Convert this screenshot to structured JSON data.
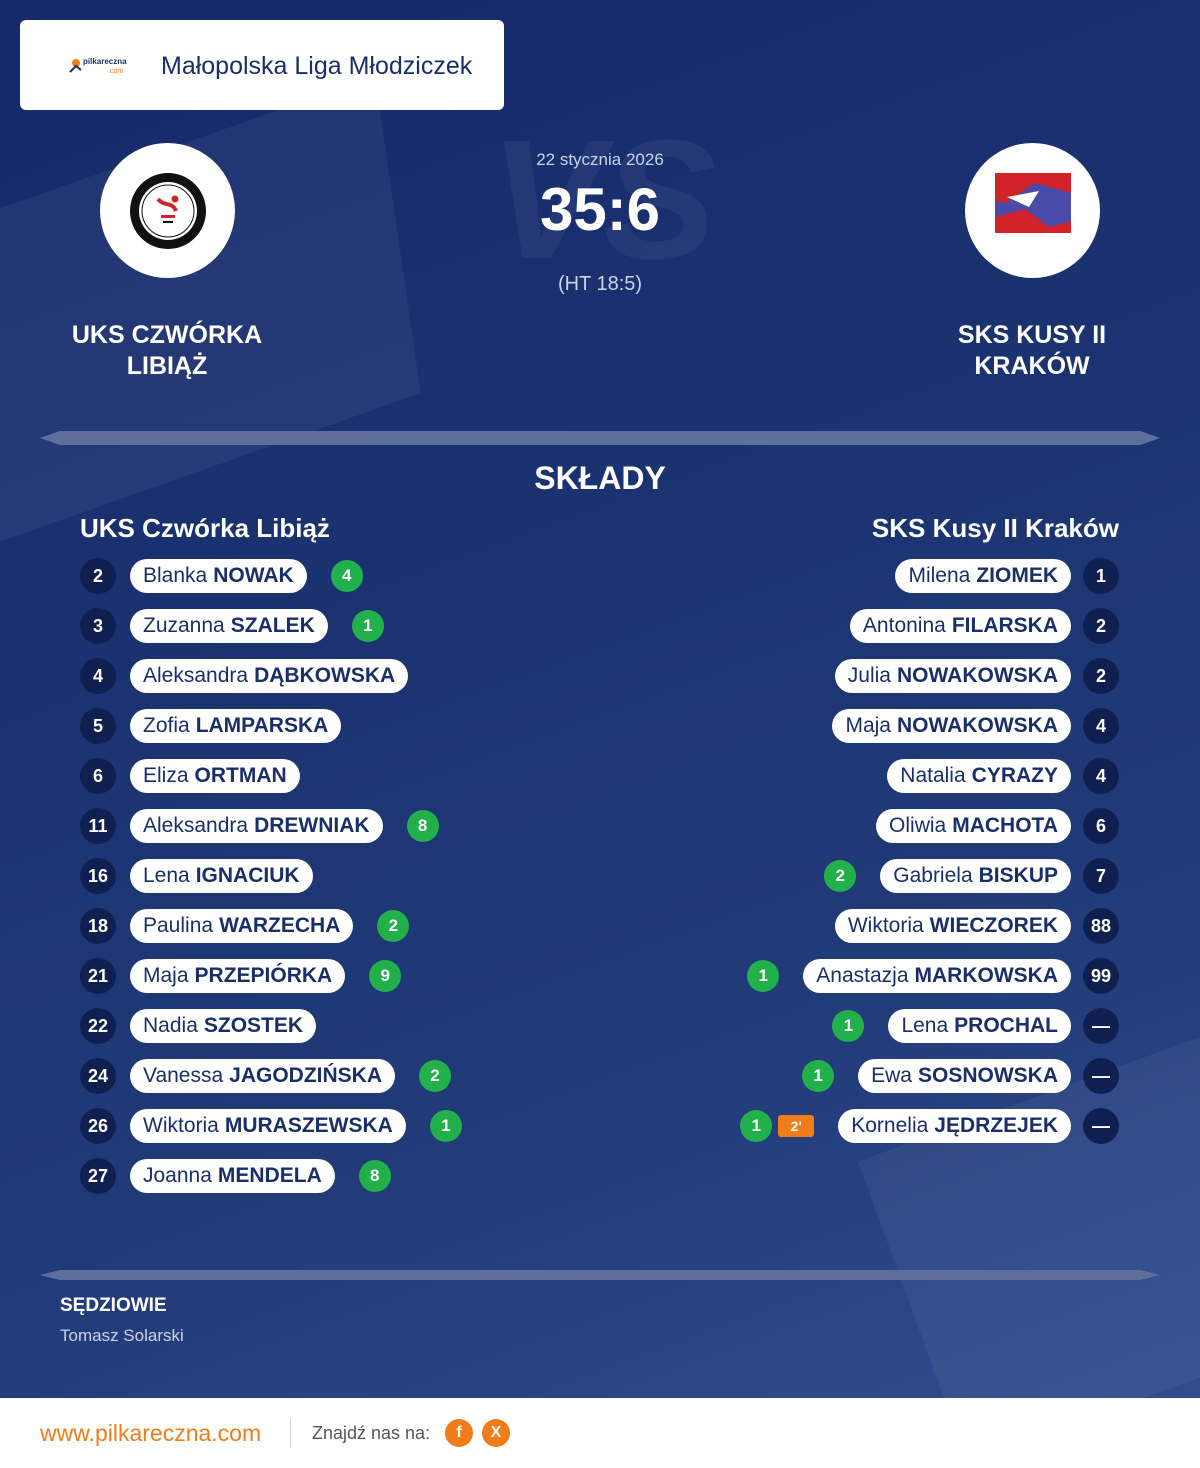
{
  "league": {
    "logo_text_top": "pilkareczna",
    "logo_text_bottom": ".com",
    "name": "Małopolska Liga Młodziczek"
  },
  "match": {
    "date": "22 stycznia 2026",
    "score": "35:6",
    "halftime": "(HT 18:5)",
    "watermark": "VS"
  },
  "home": {
    "name_line1": "UKS CZWÓRKA",
    "name_line2": "LIBIĄŻ",
    "roster_title": "UKS Czwórka Libiąż",
    "players": [
      {
        "number": "2",
        "first": "Blanka",
        "last": "NOWAK",
        "goals": "4"
      },
      {
        "number": "3",
        "first": "Zuzanna",
        "last": "SZALEK",
        "goals": "1"
      },
      {
        "number": "4",
        "first": "Aleksandra",
        "last": "DĄBKOWSKA",
        "goals": ""
      },
      {
        "number": "5",
        "first": "Zofia",
        "last": "LAMPARSKA",
        "goals": ""
      },
      {
        "number": "6",
        "first": "Eliza",
        "last": "ORTMAN",
        "goals": ""
      },
      {
        "number": "11",
        "first": "Aleksandra",
        "last": "DREWNIAK",
        "goals": "8"
      },
      {
        "number": "16",
        "first": "Lena",
        "last": "IGNACIUK",
        "goals": ""
      },
      {
        "number": "18",
        "first": "Paulina",
        "last": "WARZECHA",
        "goals": "2"
      },
      {
        "number": "21",
        "first": "Maja",
        "last": "PRZEPIÓRKA",
        "goals": "9"
      },
      {
        "number": "22",
        "first": "Nadia",
        "last": "SZOSTEK",
        "goals": ""
      },
      {
        "number": "24",
        "first": "Vanessa",
        "last": "JAGODZIŃSKA",
        "goals": "2"
      },
      {
        "number": "26",
        "first": "Wiktoria",
        "last": "MURASZEWSKA",
        "goals": "1"
      },
      {
        "number": "27",
        "first": "Joanna",
        "last": "MENDELA",
        "goals": "8"
      }
    ]
  },
  "away": {
    "name_line1": "SKS KUSY II",
    "name_line2": "KRAKÓW",
    "roster_title": "SKS Kusy II Kraków",
    "players": [
      {
        "number": "1",
        "first": "Milena",
        "last": "ZIOMEK",
        "goals": "",
        "penalty": ""
      },
      {
        "number": "2",
        "first": "Antonina",
        "last": "FILARSKA",
        "goals": "",
        "penalty": ""
      },
      {
        "number": "2",
        "first": "Julia",
        "last": "NOWAKOWSKA",
        "goals": "",
        "penalty": ""
      },
      {
        "number": "4",
        "first": "Maja",
        "last": "NOWAKOWSKA",
        "goals": "",
        "penalty": ""
      },
      {
        "number": "4",
        "first": "Natalia",
        "last": "CYRAZY",
        "goals": "",
        "penalty": ""
      },
      {
        "number": "6",
        "first": "Oliwia",
        "last": "MACHOTA",
        "goals": "",
        "penalty": ""
      },
      {
        "number": "7",
        "first": "Gabriela",
        "last": "BISKUP",
        "goals": "2",
        "penalty": ""
      },
      {
        "number": "88",
        "first": "Wiktoria",
        "last": "WIECZOREK",
        "goals": "",
        "penalty": ""
      },
      {
        "number": "99",
        "first": "Anastazja",
        "last": "MARKOWSKA",
        "goals": "1",
        "penalty": ""
      },
      {
        "number": "—",
        "first": "Lena",
        "last": "PROCHAL",
        "goals": "1",
        "penalty": ""
      },
      {
        "number": "—",
        "first": "Ewa",
        "last": "SOSNOWSKA",
        "goals": "1",
        "penalty": ""
      },
      {
        "number": "—",
        "first": "Kornelia",
        "last": "JĘDRZEJEK",
        "goals": "1",
        "penalty": "2'"
      }
    ]
  },
  "section_title": "SKŁADY",
  "referees": {
    "title": "SĘDZIOWIE",
    "names": "Tomasz Solarski"
  },
  "footer": {
    "url": "www.pilkareczna.com",
    "find_us": "Znajdź nas na:",
    "social": [
      {
        "icon": "facebook-icon",
        "glyph": "f"
      },
      {
        "icon": "x-icon",
        "glyph": "X"
      }
    ]
  },
  "colors": {
    "background": "#1c3472",
    "accent": "#f07c1a",
    "goal": "#22b04b",
    "text_dark": "#1a2f6a"
  }
}
